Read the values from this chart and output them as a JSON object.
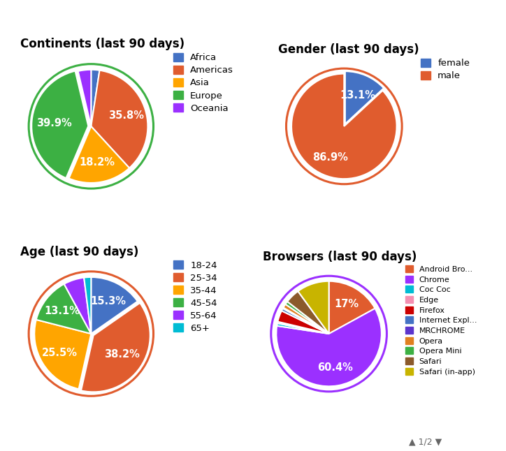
{
  "continents": {
    "title": "Continents (last 90 days)",
    "labels": [
      "Africa",
      "Americas",
      "Asia",
      "Europe",
      "Oceania"
    ],
    "values": [
      2.4,
      35.8,
      18.2,
      39.9,
      3.7
    ],
    "colors": [
      "#4472c4",
      "#e05c2e",
      "#ffa500",
      "#3cb043",
      "#9b30ff"
    ],
    "pct_labels": [
      "",
      "35.8%",
      "18.2%",
      "39.9%",
      ""
    ],
    "explode": [
      0,
      0,
      0,
      0.05,
      0
    ],
    "ring_color": "#3cb043"
  },
  "gender": {
    "title": "Gender (last 90 days)",
    "labels": [
      "female",
      "male"
    ],
    "values": [
      13.1,
      86.9
    ],
    "colors": [
      "#4472c4",
      "#e05c2e"
    ],
    "pct_labels": [
      "13.1%",
      "86.9%"
    ],
    "explode": [
      0.05,
      0
    ],
    "ring_color": "#e05c2e"
  },
  "age": {
    "title": "Age (last 90 days)",
    "labels": [
      "18-24",
      "25-34",
      "35-44",
      "45-54",
      "55-64",
      "65+"
    ],
    "values": [
      15.3,
      38.2,
      25.5,
      13.1,
      5.9,
      2.0
    ],
    "colors": [
      "#4472c4",
      "#e05c2e",
      "#ffa500",
      "#3cb043",
      "#9b30ff",
      "#00bcd4"
    ],
    "pct_labels": [
      "15.3%",
      "38.2%",
      "25.5%",
      "13.1%",
      "",
      ""
    ],
    "explode": [
      0,
      0.05,
      0,
      0,
      0,
      0
    ],
    "ring_color": "#e05c2e"
  },
  "browsers": {
    "title": "Browsers (last 90 days)",
    "labels": [
      "Android Bro...",
      "Chrome",
      "Coc Coc",
      "Edge",
      "Firefox",
      "Internet Expl...",
      "MRCHROME",
      "Opera",
      "Opera Mini",
      "Safari",
      "Safari (in-app)"
    ],
    "values": [
      17.0,
      60.4,
      0.8,
      0.5,
      3.5,
      0.8,
      0.3,
      1.2,
      1.0,
      4.5,
      10.0
    ],
    "colors": [
      "#e05c2e",
      "#9b30ff",
      "#00bcd4",
      "#f48fb1",
      "#cc0000",
      "#4472c4",
      "#5c35cc",
      "#e08020",
      "#3cb043",
      "#8b5a2b",
      "#c8b400"
    ],
    "pct_labels": [
      "17%",
      "60.4%",
      "",
      "",
      "",
      "",
      "",
      "",
      "",
      "",
      ""
    ],
    "explode": [
      0,
      0,
      0,
      0,
      0,
      0,
      0,
      0,
      0,
      0,
      0
    ],
    "ring_color": "#9b30ff"
  },
  "bg_color": "#ffffff",
  "text_color": "#333333",
  "title_fontsize": 12,
  "label_fontsize": 9.5,
  "pct_fontsize": 10.5
}
